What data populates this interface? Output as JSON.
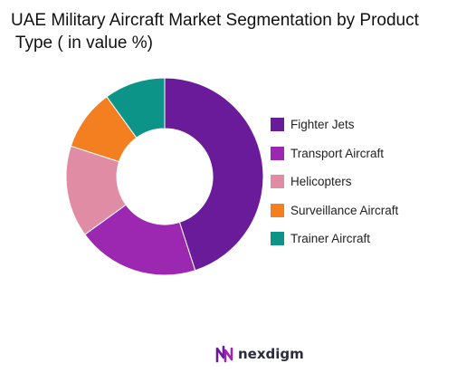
{
  "chart_data": {
    "type": "pie",
    "title_lines": [
      "UAE Military Aircraft Market Segmentation by Product",
      " Type ( in value %)"
    ],
    "categories": [
      "Fighter Jets",
      "Transport Aircraft",
      "Helicopters",
      "Surveillance Aircraft",
      "Trainer Aircraft"
    ],
    "values": [
      45,
      20,
      15,
      10,
      10
    ],
    "colors": [
      "#6a1b9a",
      "#9c27b0",
      "#e08ca5",
      "#f47f20",
      "#0d9488"
    ],
    "donut": true,
    "legend_position": "right"
  },
  "branding": {
    "logo_text": "nexdigm",
    "logo_color": "#6a1b9a"
  }
}
